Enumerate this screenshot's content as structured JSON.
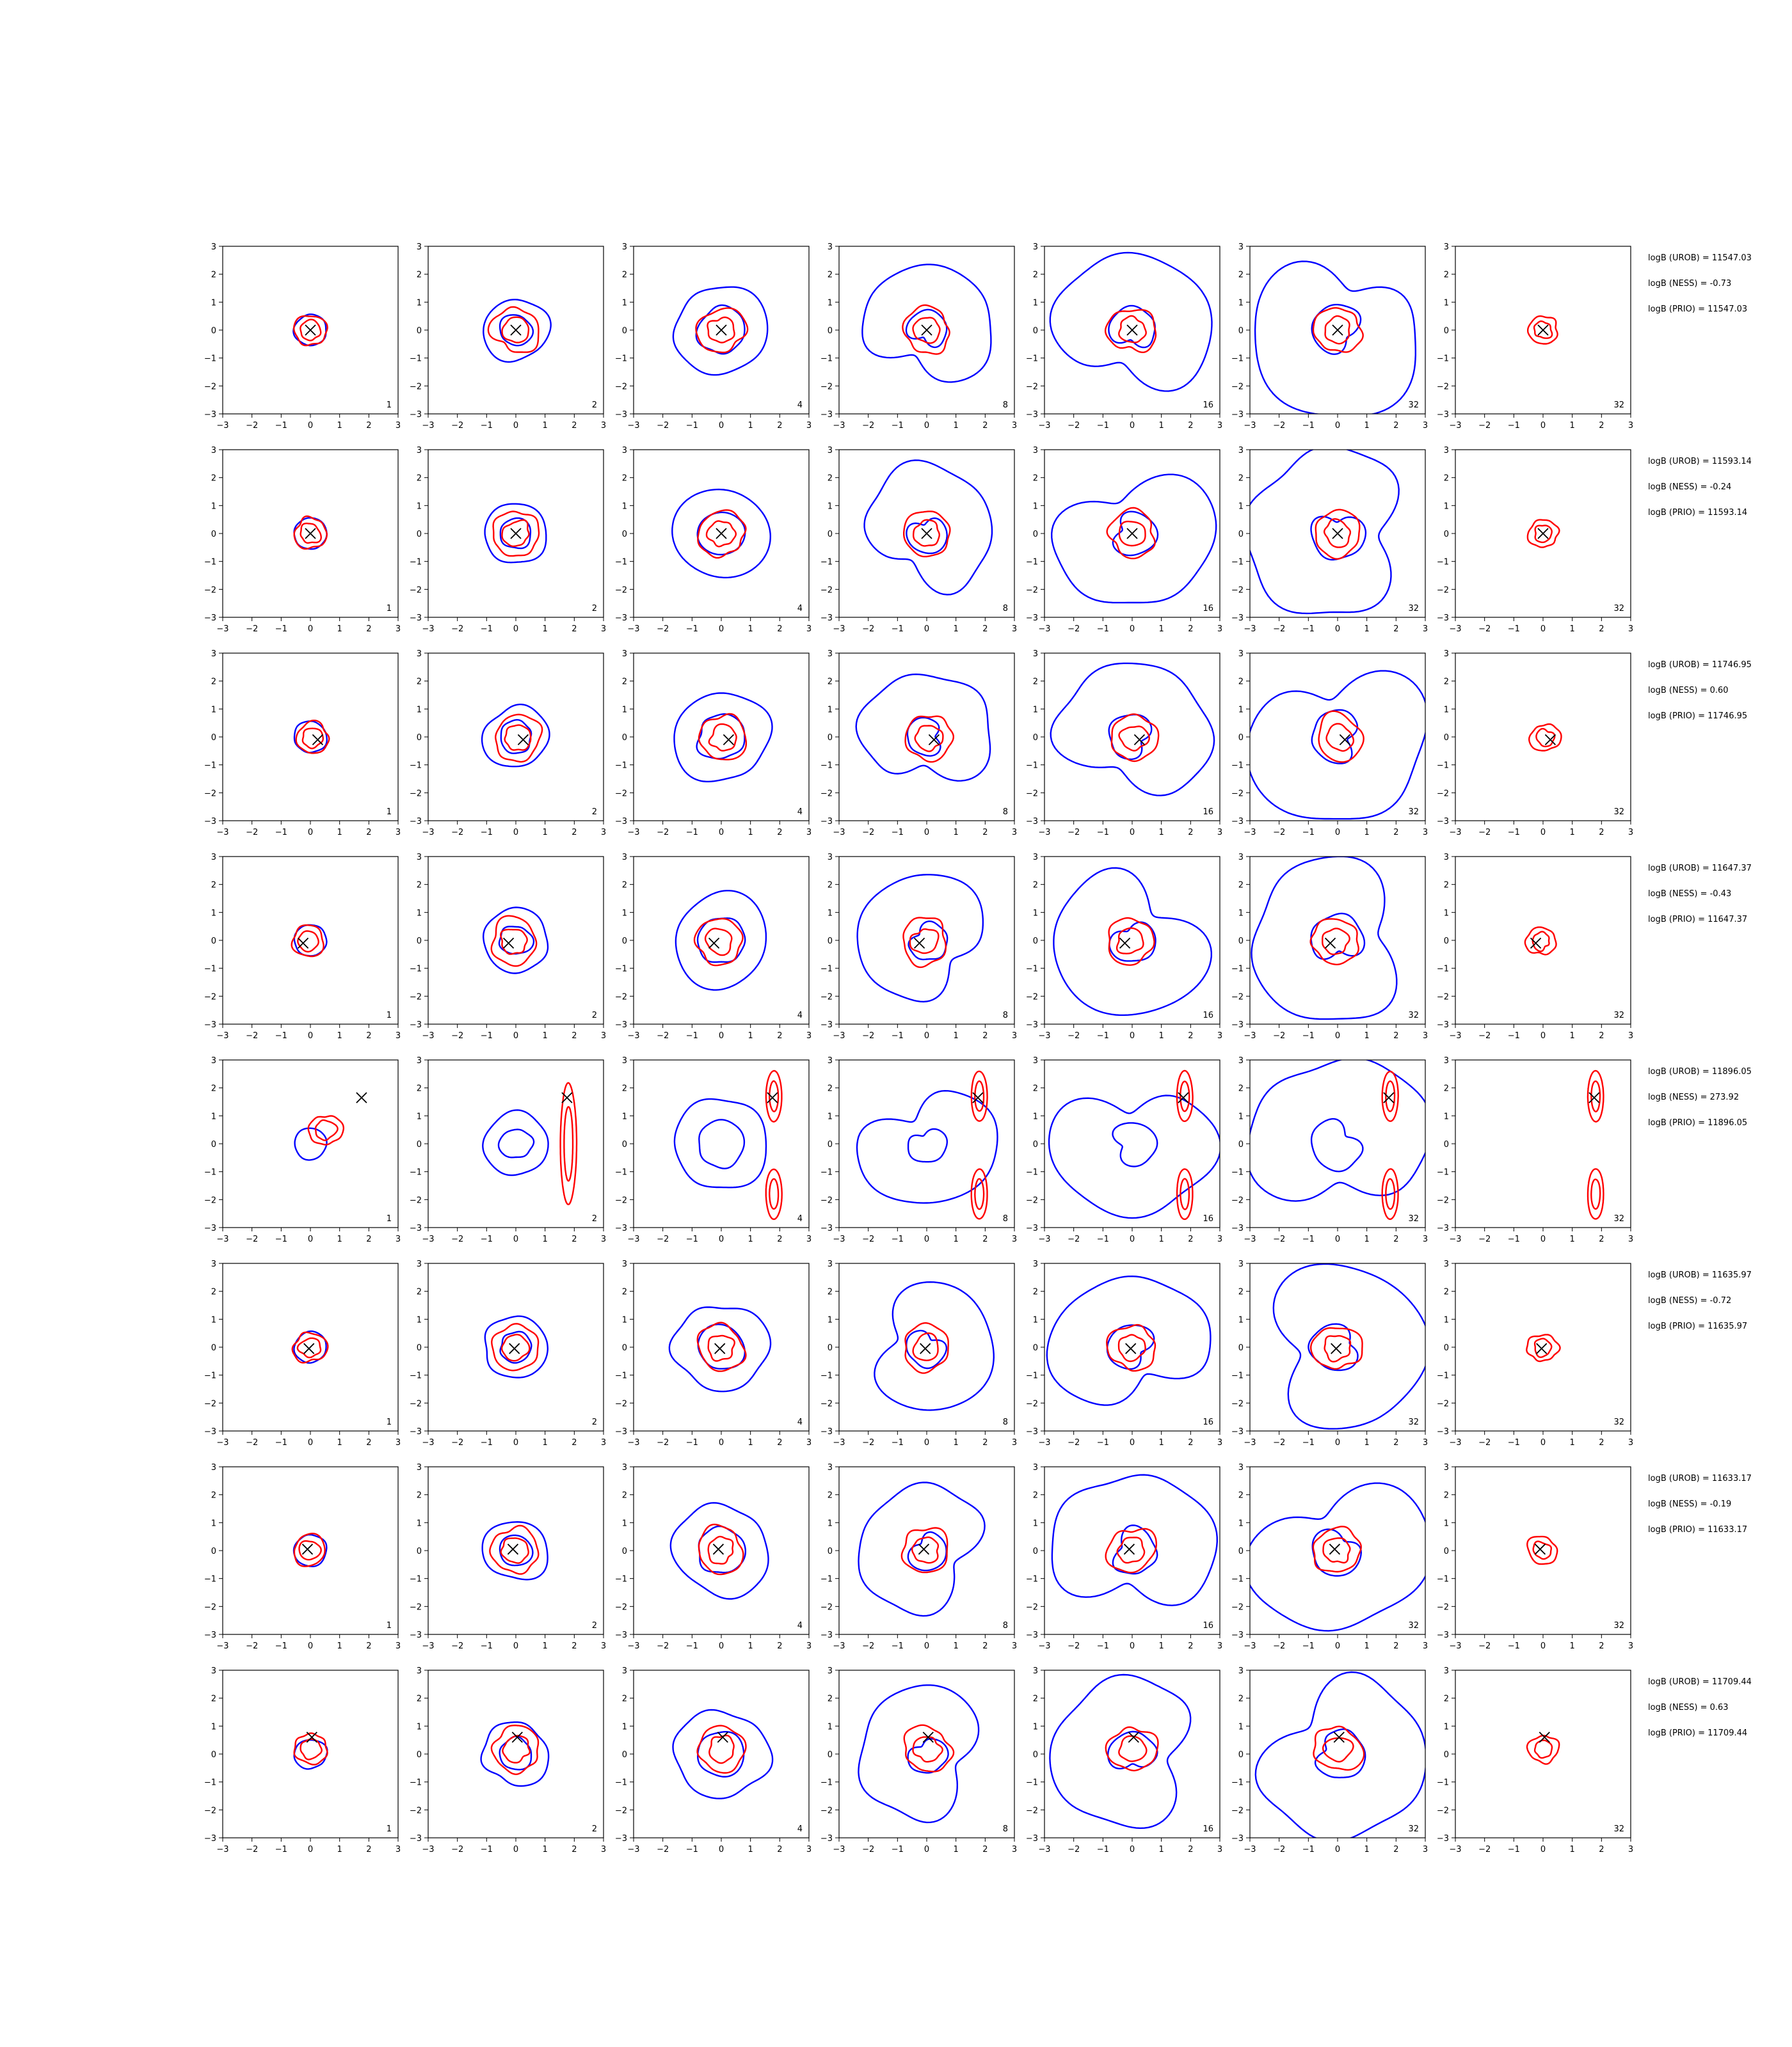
{
  "chart_data": {
    "type": "contour-grid",
    "rows": 8,
    "columns": 7,
    "axes": {
      "xlim": [
        -3,
        3
      ],
      "ylim": [
        -3,
        3
      ],
      "xticks": [
        -3,
        -2,
        -1,
        0,
        1,
        2,
        3
      ],
      "yticks": [
        -3,
        -2,
        -1,
        0,
        1,
        2,
        3
      ],
      "xtick_labels": [
        "−3",
        "−2",
        "−1",
        "0",
        "1",
        "2",
        "3"
      ],
      "ytick_labels": [
        "−3",
        "−2",
        "−1",
        "0",
        "1",
        "2",
        "3"
      ]
    },
    "panel_labels": [
      "1",
      "2",
      "4",
      "8",
      "16",
      "32",
      "32"
    ],
    "colors": {
      "outer_contours": "#0000ff",
      "inner_contours": "#ff0000",
      "marker": "#000000"
    },
    "row_data": [
      {
        "marker": [
          0.0,
          0.0
        ],
        "annotations": [
          "logB (UROB) = 11547.03",
          "logB (NESS) = -0.73",
          "logB (PRIO) = 11547.03"
        ]
      },
      {
        "marker": [
          0.0,
          0.0
        ],
        "annotations": [
          "logB (UROB) = 11593.14",
          "logB (NESS) = -0.24",
          "logB (PRIO) = 11593.14"
        ]
      },
      {
        "marker": [
          0.25,
          -0.1
        ],
        "annotations": [
          "logB (UROB) = 11746.95",
          "logB (NESS) = 0.60",
          "logB (PRIO) = 11746.95"
        ]
      },
      {
        "marker": [
          -0.25,
          -0.1
        ],
        "annotations": [
          "logB (UROB) = 11647.37",
          "logB (NESS) = -0.43",
          "logB (PRIO) = 11647.37"
        ]
      },
      {
        "marker": [
          1.75,
          1.65
        ],
        "annotations": [
          "logB (UROB) = 11896.05",
          "logB (NESS) = 273.92",
          "logB (PRIO) = 11896.05"
        ]
      },
      {
        "marker": [
          -0.05,
          -0.05
        ],
        "annotations": [
          "logB (UROB) = 11635.97",
          "logB (NESS) = -0.72",
          "logB (PRIO) = 11635.97"
        ]
      },
      {
        "marker": [
          -0.1,
          0.05
        ],
        "annotations": [
          "logB (UROB) = 11633.17",
          "logB (NESS) = -0.19",
          "logB (PRIO) = 11633.17"
        ]
      },
      {
        "marker": [
          0.05,
          0.6
        ],
        "annotations": [
          "logB (UROB) = 11709.44",
          "logB (NESS) = 0.63",
          "logB (PRIO) = 11709.44"
        ]
      }
    ]
  }
}
